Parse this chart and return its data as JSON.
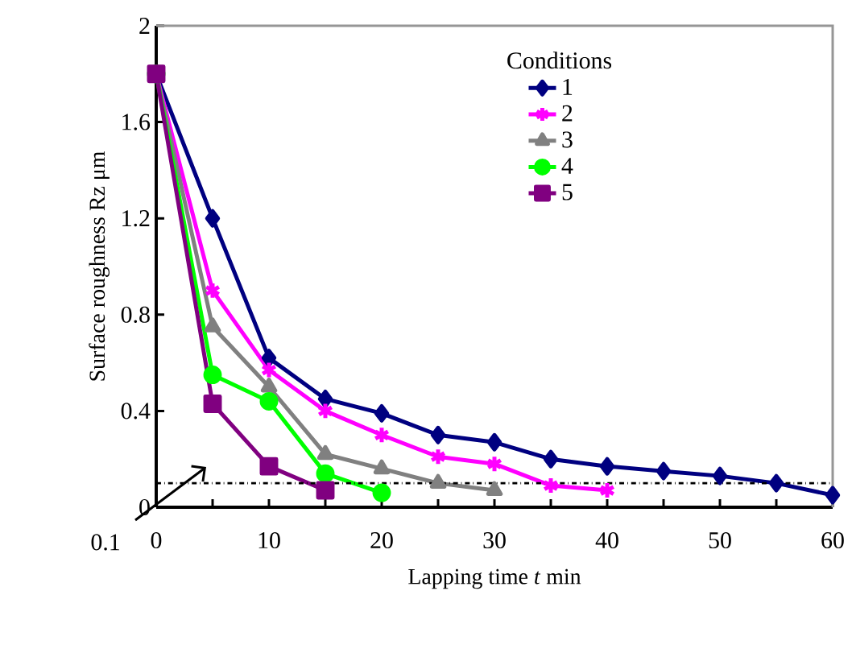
{
  "chart_data": {
    "type": "line",
    "xlabel": "Lapping time *t* min",
    "ylabel": "Surface roughness Rz μm",
    "legend_title": "Conditions",
    "legend": "top right",
    "grid": false,
    "line_style": "solid",
    "xlim": [
      0,
      60
    ],
    "ylim": [
      0,
      2
    ],
    "xticks": [
      0,
      {
        "value": 5,
        "label": null
      },
      10,
      {
        "value": 15,
        "label": null
      },
      20,
      {
        "value": 25,
        "label": null
      },
      30,
      {
        "value": 35,
        "label": null
      },
      40,
      {
        "value": 45,
        "label": null
      },
      50,
      {
        "value": 55,
        "label": null
      },
      60
    ],
    "yticks": [
      0,
      0.4,
      0.8,
      1.2,
      1.6,
      2
    ],
    "ref_lines": [
      {
        "axis": "y",
        "value": 0.1,
        "label": "0.1",
        "color": "#000000",
        "line_style": "dashdot"
      }
    ],
    "series": [
      {
        "name": "1",
        "color": "#000080",
        "marker": "diamond",
        "x": [
          0,
          5,
          10,
          15,
          20,
          25,
          30,
          35,
          40,
          45,
          50,
          55,
          60
        ],
        "values": [
          1.8,
          1.2,
          0.62,
          0.45,
          0.39,
          0.3,
          0.27,
          0.2,
          0.17,
          0.15,
          0.13,
          0.1,
          0.05
        ]
      },
      {
        "name": "2",
        "color": "#ff00ff",
        "marker": "cross",
        "x": [
          0,
          5,
          10,
          15,
          20,
          25,
          30,
          35,
          40
        ],
        "values": [
          1.8,
          0.9,
          0.57,
          0.4,
          0.3,
          0.21,
          0.18,
          0.09,
          0.07
        ]
      },
      {
        "name": "3",
        "color": "#808080",
        "marker": "triangle",
        "x": [
          0,
          5,
          10,
          15,
          20,
          25,
          30
        ],
        "values": [
          1.8,
          0.75,
          0.5,
          0.22,
          0.16,
          0.1,
          0.07
        ]
      },
      {
        "name": "4",
        "color": "#00ff00",
        "marker": "circle",
        "x": [
          0,
          5,
          10,
          15,
          20
        ],
        "values": [
          1.8,
          0.55,
          0.44,
          0.14,
          0.06
        ]
      },
      {
        "name": "5",
        "color": "#800080",
        "marker": "square",
        "x": [
          0,
          5,
          10,
          15
        ],
        "values": [
          1.8,
          0.43,
          0.17,
          0.07
        ]
      }
    ]
  }
}
